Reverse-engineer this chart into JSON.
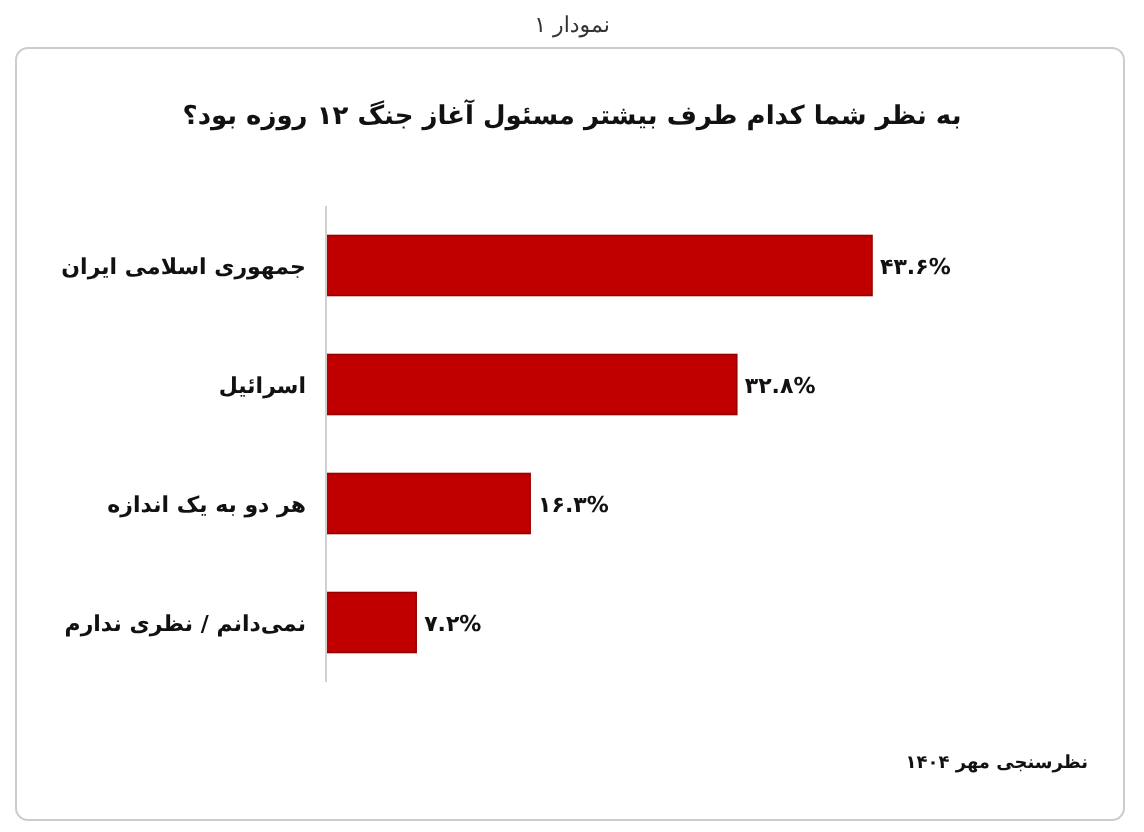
{
  "chart_data": {
    "type": "bar",
    "orientation": "horizontal",
    "title": "به نظر شما کدام طرف بیشتر مسئول آغاز جنگ ۱۲ روزه بود؟",
    "subtitle": "نمودار ۱",
    "categories": [
      "جمهوری اسلامی ایران",
      "اسرائیل",
      "هر دو به یک اندازه",
      "نمی‌دانم / نظری ندارم"
    ],
    "values": [
      43.6,
      32.8,
      16.3,
      7.2
    ],
    "value_labels": [
      "۴۳.۶%",
      "۳۲.۸%",
      "۱۶.۳%",
      "۷.۲%"
    ],
    "color": "#c00000",
    "annotations": [
      "نظرسنجی مهر ۱۴۰۴"
    ]
  }
}
